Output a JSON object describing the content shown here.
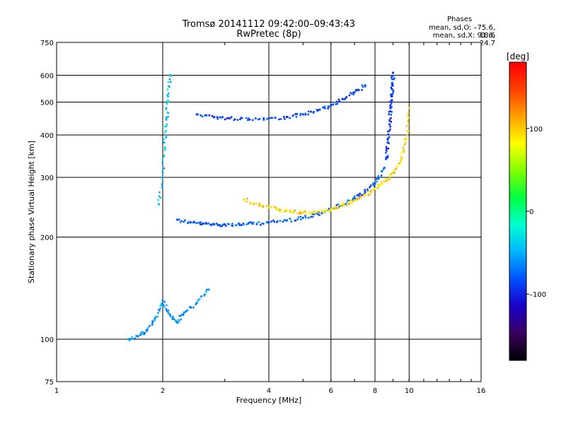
{
  "header": {
    "title_line1": "Tromsø 20141112 09:42:00–09:43:43",
    "title_line2": "RwPretec (8p)"
  },
  "phases": {
    "heading": "Phases",
    "line_o": "mean, sd,O: –75.6, 18.6",
    "line_x": "mean, sd,X:  91.6, 24.7"
  },
  "colorbar": {
    "unit_label": "[deg]",
    "ticks": [
      {
        "value": 100,
        "label": "100"
      },
      {
        "value": 0,
        "label": "0"
      },
      {
        "value": -100,
        "label": "–100"
      }
    ],
    "range": [
      -180,
      180
    ],
    "colors": [
      "#000000",
      "#3a0060",
      "#1a00c8",
      "#0050ff",
      "#00b4ff",
      "#00ffd0",
      "#00ff40",
      "#80ff00",
      "#ffff00",
      "#ffa000",
      "#ff4000",
      "#ff0000"
    ]
  },
  "chart_data": {
    "type": "scatter",
    "xlabel": "Frequency [MHz]",
    "ylabel": "Stationary phase Virtual Height [km]",
    "xscale": "log",
    "yscale": "log",
    "xlim": [
      1,
      16
    ],
    "ylim": [
      75,
      750
    ],
    "xticks": [
      1,
      2,
      4,
      6,
      8,
      10,
      16
    ],
    "xtick_labels": [
      "1",
      "2",
      "4",
      "6",
      "8",
      "10",
      "16"
    ],
    "yticks": [
      75,
      100,
      200,
      300,
      400,
      500,
      600,
      750
    ],
    "ytick_labels": [
      "75",
      "100",
      "200",
      "300",
      "400",
      "500",
      "600",
      "750"
    ],
    "grid": true,
    "traces": [
      {
        "name": "O-mode F-layer trace",
        "phase_deg": -80,
        "x": [
          2.2,
          2.4,
          2.6,
          2.8,
          3.0,
          3.3,
          3.6,
          4.0,
          4.5,
          5.0,
          5.5,
          6.0,
          6.5,
          7.0,
          7.5,
          8.0,
          8.5
        ],
        "y": [
          225,
          221,
          219,
          218,
          218,
          218,
          219,
          221,
          224,
          228,
          234,
          242,
          250,
          260,
          272,
          288,
          320
        ]
      },
      {
        "name": "O-mode cusp",
        "phase_deg": -90,
        "x": [
          8.6,
          8.7,
          8.8,
          8.85,
          8.9,
          8.95,
          9.0
        ],
        "y": [
          340,
          380,
          430,
          480,
          520,
          560,
          610
        ]
      },
      {
        "name": "X-mode F-layer trace",
        "phase_deg": 95,
        "x": [
          3.4,
          3.8,
          4.2,
          4.6,
          5.0,
          5.5,
          6.0,
          6.5,
          7.0,
          7.5,
          8.0,
          8.5,
          9.0,
          9.5,
          9.8,
          10.0
        ],
        "y": [
          258,
          248,
          242,
          238,
          236,
          237,
          242,
          248,
          256,
          266,
          278,
          292,
          310,
          340,
          390,
          480
        ]
      },
      {
        "name": "Multiple reflection",
        "phase_deg": -85,
        "x": [
          2.5,
          2.8,
          3.1,
          3.5,
          4.0,
          4.5,
          5.0,
          5.5,
          6.0,
          6.5,
          7.0,
          7.5
        ],
        "y": [
          460,
          452,
          448,
          447,
          448,
          452,
          460,
          472,
          490,
          510,
          535,
          560
        ]
      },
      {
        "name": "E-layer spread",
        "phase_deg": -60,
        "x": [
          1.6,
          1.7,
          1.8,
          1.9,
          2.0,
          2.1,
          2.2,
          2.3,
          2.5,
          2.7
        ],
        "y": [
          100,
          102,
          106,
          115,
          130,
          118,
          112,
          120,
          128,
          140
        ]
      },
      {
        "name": "Spread F near 2 MHz",
        "phase_deg": -40,
        "x": [
          1.95,
          2.0,
          2.02,
          2.05,
          2.07,
          2.1
        ],
        "y": [
          250,
          310,
          380,
          450,
          520,
          600
        ]
      }
    ]
  }
}
